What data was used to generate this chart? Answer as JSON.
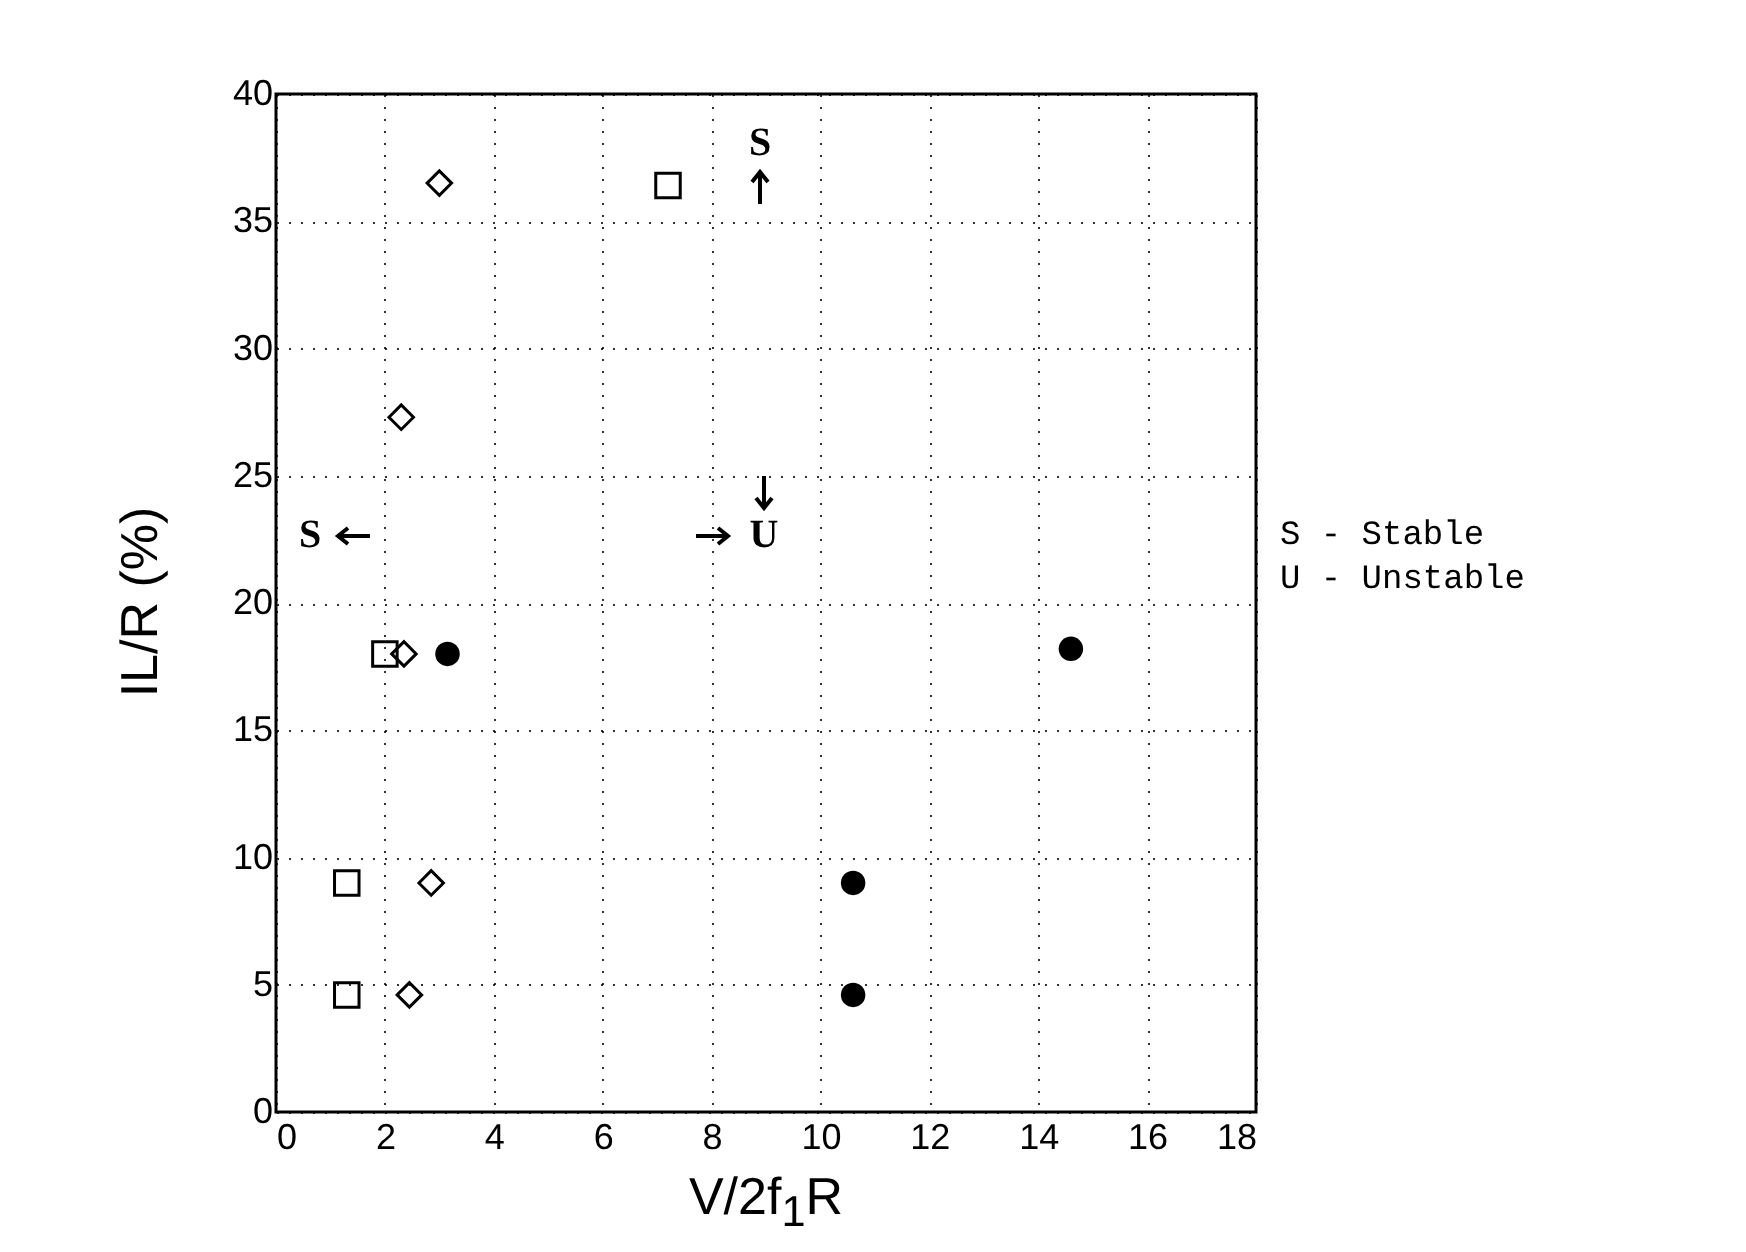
{
  "chart_data": {
    "type": "scatter",
    "xlabel": "V/2f$_{1}$R",
    "ylabel": "IL/R (%)",
    "xlim": [
      0,
      18
    ],
    "xticks": [
      0,
      2,
      4,
      6,
      8,
      10,
      12,
      14,
      16,
      18
    ],
    "ylim": [
      0,
      40
    ],
    "yticks": [
      0,
      5,
      10,
      15,
      20,
      25,
      30,
      35,
      40
    ],
    "grid": true,
    "line_style": "dotted",
    "series": [
      {
        "color": "#000000",
        "marker": "square",
        "x": [
          1.3,
          1.3,
          2.0,
          7.2
        ],
        "values": [
          4.6,
          9.0,
          18,
          36.4
        ]
      },
      {
        "color": "#000000",
        "marker": "diamond",
        "x": [
          2.45,
          2.85,
          2.35,
          2.3,
          3.0
        ],
        "values": [
          4.6,
          9.0,
          18,
          27.3,
          36.5
        ]
      },
      {
        "color": "#000000",
        "marker": "circle",
        "x": [
          3.15
        ],
        "values": [
          18
        ]
      },
      {
        "color": "#000000",
        "marker": "circle",
        "x": [
          10.6,
          10.6,
          14.6
        ],
        "values": [
          4.6,
          9.0,
          18.2
        ]
      }
    ],
    "annotations": [
      "S",
      "U",
      "S",
      "S - Stable",
      "U - Unstable"
    ]
  }
}
